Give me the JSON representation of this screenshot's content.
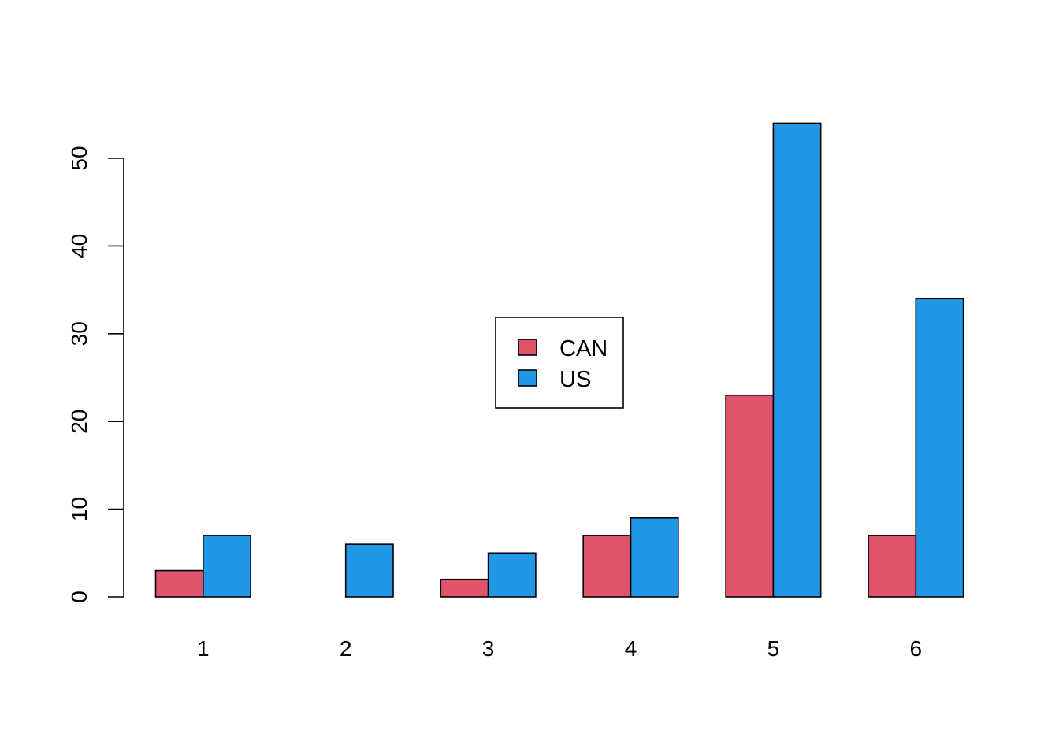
{
  "chart_data": {
    "type": "bar",
    "categories": [
      "1",
      "2",
      "3",
      "4",
      "5",
      "6"
    ],
    "series": [
      {
        "name": "CAN",
        "color": "#DF536B",
        "values": [
          3,
          0,
          2,
          7,
          23,
          7
        ]
      },
      {
        "name": "US",
        "color": "#2297E6",
        "values": [
          7,
          6,
          5,
          9,
          54,
          34
        ]
      }
    ],
    "title": "",
    "xlabel": "",
    "ylabel": "",
    "ylim": [
      0,
      54
    ],
    "yticks": [
      0,
      10,
      20,
      30,
      40,
      50
    ],
    "grid": false,
    "legend": {
      "placement": "center",
      "entries": [
        "CAN",
        "US"
      ]
    }
  }
}
